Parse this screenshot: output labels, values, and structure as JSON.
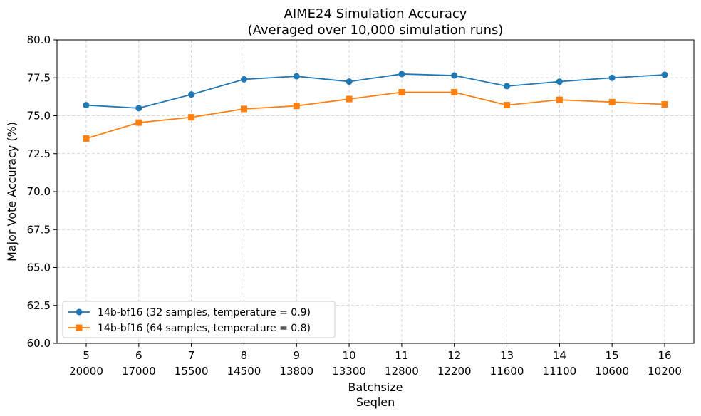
{
  "chart_data": {
    "type": "line",
    "title": "AIME24 Simulation Accuracy",
    "subtitle": "(Averaged over 10,000 simulation runs)",
    "xlabel": [
      "Batchsize",
      "Seqlen"
    ],
    "ylabel": "Major Vote Accuracy (%)",
    "categories": [
      {
        "batchsize": "5",
        "seqlen": "20000"
      },
      {
        "batchsize": "6",
        "seqlen": "17000"
      },
      {
        "batchsize": "7",
        "seqlen": "15500"
      },
      {
        "batchsize": "8",
        "seqlen": "14500"
      },
      {
        "batchsize": "9",
        "seqlen": "13800"
      },
      {
        "batchsize": "10",
        "seqlen": "13300"
      },
      {
        "batchsize": "11",
        "seqlen": "12800"
      },
      {
        "batchsize": "12",
        "seqlen": "12200"
      },
      {
        "batchsize": "13",
        "seqlen": "11600"
      },
      {
        "batchsize": "14",
        "seqlen": "11100"
      },
      {
        "batchsize": "15",
        "seqlen": "10600"
      },
      {
        "batchsize": "16",
        "seqlen": "10200"
      }
    ],
    "ylim": [
      60.0,
      80.0
    ],
    "yticks": [
      "60.0",
      "62.5",
      "65.0",
      "67.5",
      "70.0",
      "72.5",
      "75.0",
      "77.5",
      "80.0"
    ],
    "grid": true,
    "legend_position": "lower-left",
    "series": [
      {
        "name": "14b-bf16 (32 samples, temperature = 0.9)",
        "color": "#1f77b4",
        "marker": "circle",
        "values": [
          75.7,
          75.5,
          76.4,
          77.4,
          77.6,
          77.25,
          77.75,
          77.65,
          76.95,
          77.25,
          77.5,
          77.7
        ]
      },
      {
        "name": "14b-bf16 (64 samples, temperature = 0.8)",
        "color": "#ff7f0e",
        "marker": "square",
        "values": [
          73.5,
          74.55,
          74.9,
          75.45,
          75.65,
          76.1,
          76.55,
          76.55,
          75.7,
          76.05,
          75.9,
          75.75
        ]
      }
    ]
  }
}
